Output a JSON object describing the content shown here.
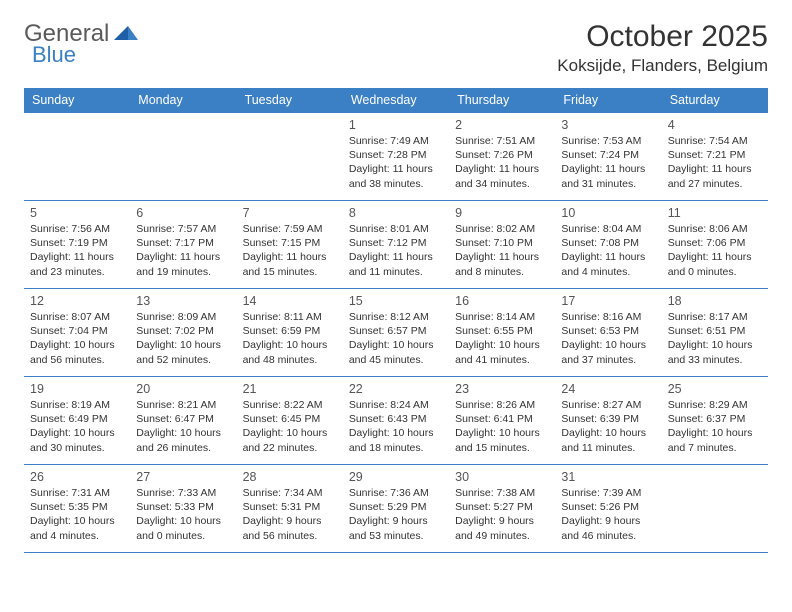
{
  "logo": {
    "text1": "General",
    "text2": "Blue"
  },
  "title": "October 2025",
  "location": "Koksijde, Flanders, Belgium",
  "colors": {
    "header_bg": "#3b7fc4",
    "header_text": "#ffffff",
    "border": "#3b7fc4",
    "accent": "#3b7fc4",
    "body_text": "#333333",
    "daynum": "#555555",
    "background": "#ffffff"
  },
  "day_headers": [
    "Sunday",
    "Monday",
    "Tuesday",
    "Wednesday",
    "Thursday",
    "Friday",
    "Saturday"
  ],
  "weeks": [
    [
      null,
      null,
      null,
      {
        "n": "1",
        "sunrise": "7:49 AM",
        "sunset": "7:28 PM",
        "daylight": "11 hours and 38 minutes."
      },
      {
        "n": "2",
        "sunrise": "7:51 AM",
        "sunset": "7:26 PM",
        "daylight": "11 hours and 34 minutes."
      },
      {
        "n": "3",
        "sunrise": "7:53 AM",
        "sunset": "7:24 PM",
        "daylight": "11 hours and 31 minutes."
      },
      {
        "n": "4",
        "sunrise": "7:54 AM",
        "sunset": "7:21 PM",
        "daylight": "11 hours and 27 minutes."
      }
    ],
    [
      {
        "n": "5",
        "sunrise": "7:56 AM",
        "sunset": "7:19 PM",
        "daylight": "11 hours and 23 minutes."
      },
      {
        "n": "6",
        "sunrise": "7:57 AM",
        "sunset": "7:17 PM",
        "daylight": "11 hours and 19 minutes."
      },
      {
        "n": "7",
        "sunrise": "7:59 AM",
        "sunset": "7:15 PM",
        "daylight": "11 hours and 15 minutes."
      },
      {
        "n": "8",
        "sunrise": "8:01 AM",
        "sunset": "7:12 PM",
        "daylight": "11 hours and 11 minutes."
      },
      {
        "n": "9",
        "sunrise": "8:02 AM",
        "sunset": "7:10 PM",
        "daylight": "11 hours and 8 minutes."
      },
      {
        "n": "10",
        "sunrise": "8:04 AM",
        "sunset": "7:08 PM",
        "daylight": "11 hours and 4 minutes."
      },
      {
        "n": "11",
        "sunrise": "8:06 AM",
        "sunset": "7:06 PM",
        "daylight": "11 hours and 0 minutes."
      }
    ],
    [
      {
        "n": "12",
        "sunrise": "8:07 AM",
        "sunset": "7:04 PM",
        "daylight": "10 hours and 56 minutes."
      },
      {
        "n": "13",
        "sunrise": "8:09 AM",
        "sunset": "7:02 PM",
        "daylight": "10 hours and 52 minutes."
      },
      {
        "n": "14",
        "sunrise": "8:11 AM",
        "sunset": "6:59 PM",
        "daylight": "10 hours and 48 minutes."
      },
      {
        "n": "15",
        "sunrise": "8:12 AM",
        "sunset": "6:57 PM",
        "daylight": "10 hours and 45 minutes."
      },
      {
        "n": "16",
        "sunrise": "8:14 AM",
        "sunset": "6:55 PM",
        "daylight": "10 hours and 41 minutes."
      },
      {
        "n": "17",
        "sunrise": "8:16 AM",
        "sunset": "6:53 PM",
        "daylight": "10 hours and 37 minutes."
      },
      {
        "n": "18",
        "sunrise": "8:17 AM",
        "sunset": "6:51 PM",
        "daylight": "10 hours and 33 minutes."
      }
    ],
    [
      {
        "n": "19",
        "sunrise": "8:19 AM",
        "sunset": "6:49 PM",
        "daylight": "10 hours and 30 minutes."
      },
      {
        "n": "20",
        "sunrise": "8:21 AM",
        "sunset": "6:47 PM",
        "daylight": "10 hours and 26 minutes."
      },
      {
        "n": "21",
        "sunrise": "8:22 AM",
        "sunset": "6:45 PM",
        "daylight": "10 hours and 22 minutes."
      },
      {
        "n": "22",
        "sunrise": "8:24 AM",
        "sunset": "6:43 PM",
        "daylight": "10 hours and 18 minutes."
      },
      {
        "n": "23",
        "sunrise": "8:26 AM",
        "sunset": "6:41 PM",
        "daylight": "10 hours and 15 minutes."
      },
      {
        "n": "24",
        "sunrise": "8:27 AM",
        "sunset": "6:39 PM",
        "daylight": "10 hours and 11 minutes."
      },
      {
        "n": "25",
        "sunrise": "8:29 AM",
        "sunset": "6:37 PM",
        "daylight": "10 hours and 7 minutes."
      }
    ],
    [
      {
        "n": "26",
        "sunrise": "7:31 AM",
        "sunset": "5:35 PM",
        "daylight": "10 hours and 4 minutes."
      },
      {
        "n": "27",
        "sunrise": "7:33 AM",
        "sunset": "5:33 PM",
        "daylight": "10 hours and 0 minutes."
      },
      {
        "n": "28",
        "sunrise": "7:34 AM",
        "sunset": "5:31 PM",
        "daylight": "9 hours and 56 minutes."
      },
      {
        "n": "29",
        "sunrise": "7:36 AM",
        "sunset": "5:29 PM",
        "daylight": "9 hours and 53 minutes."
      },
      {
        "n": "30",
        "sunrise": "7:38 AM",
        "sunset": "5:27 PM",
        "daylight": "9 hours and 49 minutes."
      },
      {
        "n": "31",
        "sunrise": "7:39 AM",
        "sunset": "5:26 PM",
        "daylight": "9 hours and 46 minutes."
      },
      null
    ]
  ],
  "labels": {
    "sunrise_prefix": "Sunrise: ",
    "sunset_prefix": "Sunset: ",
    "daylight_prefix": "Daylight: "
  }
}
